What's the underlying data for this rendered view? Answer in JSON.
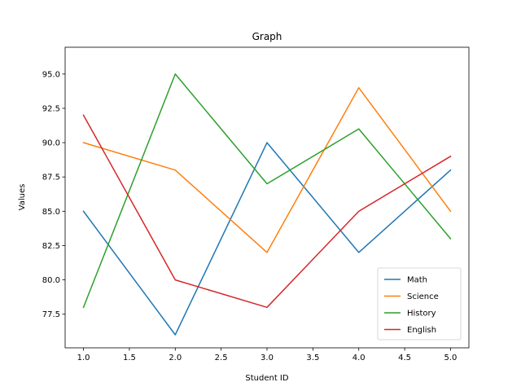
{
  "chart_data": {
    "type": "line",
    "title": "Graph",
    "xlabel": "Student ID",
    "ylabel": "Values",
    "x": [
      1,
      2,
      3,
      4,
      5
    ],
    "xlim": [
      0.8,
      5.2
    ],
    "ylim": [
      75.05,
      96.95
    ],
    "xticks": [
      "1.0",
      "1.5",
      "2.0",
      "2.5",
      "3.0",
      "3.5",
      "4.0",
      "4.5",
      "5.0"
    ],
    "yticks": [
      "77.5",
      "80.0",
      "82.5",
      "85.0",
      "87.5",
      "90.0",
      "92.5",
      "95.0"
    ],
    "grid": false,
    "legend_position": "lower-right",
    "series": [
      {
        "name": "Math",
        "values": [
          85,
          76,
          90,
          82,
          88
        ],
        "color": "#1f77b4"
      },
      {
        "name": "Science",
        "values": [
          90,
          88,
          82,
          94,
          85
        ],
        "color": "#ff7f0e"
      },
      {
        "name": "History",
        "values": [
          78,
          95,
          87,
          91,
          83
        ],
        "color": "#2ca02c"
      },
      {
        "name": "English",
        "values": [
          92,
          80,
          78,
          85,
          89
        ],
        "color": "#d62728"
      }
    ]
  }
}
